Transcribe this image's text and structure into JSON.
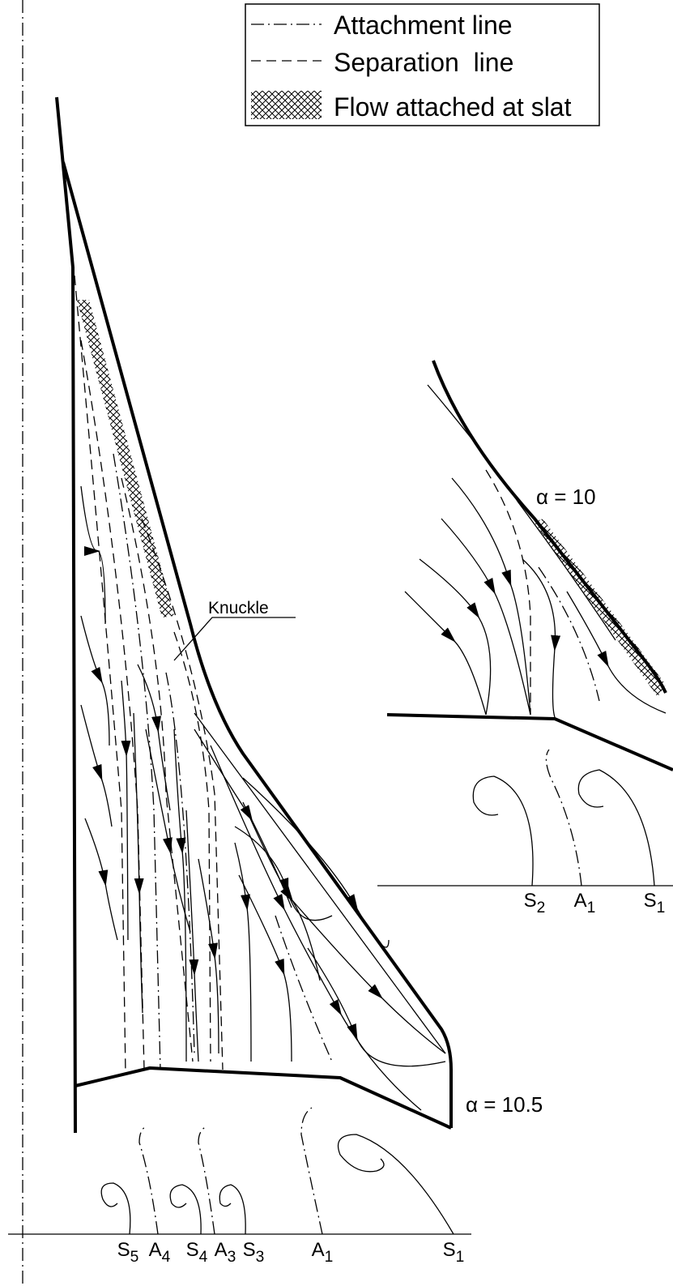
{
  "legend": {
    "items": [
      "Attachment line",
      "Separation  line",
      "Flow attached at slat"
    ]
  },
  "main": {
    "alpha_label": "α = 10.5",
    "knuckle_label": "Knuckle",
    "stations": [
      {
        "letter": "S",
        "sub": "5"
      },
      {
        "letter": "A",
        "sub": "4"
      },
      {
        "letter": "S",
        "sub": "4"
      },
      {
        "letter": "A",
        "sub": "3"
      },
      {
        "letter": "S",
        "sub": "3"
      },
      {
        "letter": "A",
        "sub": "1"
      },
      {
        "letter": "S",
        "sub": "1"
      }
    ]
  },
  "inset": {
    "alpha_label": "α = 10",
    "stations": [
      {
        "letter": "S",
        "sub": "2"
      },
      {
        "letter": "A",
        "sub": "1"
      },
      {
        "letter": "S",
        "sub": "1"
      }
    ]
  }
}
